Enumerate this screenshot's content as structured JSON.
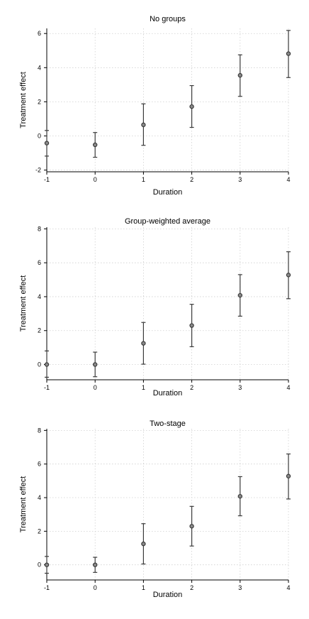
{
  "chart_data": [
    {
      "type": "scatter",
      "title": "No groups",
      "xlabel": "Duration",
      "ylabel": "Treatment effect",
      "x": [
        -1,
        0,
        1,
        2,
        3,
        4
      ],
      "xticks": [
        -1,
        0,
        1,
        2,
        3,
        4
      ],
      "yticks": [
        -2,
        0,
        2,
        4,
        6
      ],
      "xlim": [
        -1,
        4
      ],
      "ylim": [
        -2.1,
        6.3
      ],
      "grid": true,
      "series": [
        {
          "estimate": [
            -0.42,
            -0.52,
            0.65,
            1.72,
            3.55,
            4.82
          ],
          "ci_low": [
            -1.18,
            -1.25,
            -0.55,
            0.5,
            2.32,
            3.42
          ],
          "ci_high": [
            0.32,
            0.2,
            1.88,
            2.95,
            4.75,
            6.18
          ]
        }
      ]
    },
    {
      "type": "scatter",
      "title": "Group-weighted average",
      "xlabel": "Duration",
      "ylabel": "Treatment effect",
      "x": [
        -1,
        0,
        1,
        2,
        3,
        4
      ],
      "xticks": [
        -1,
        0,
        1,
        2,
        3,
        4
      ],
      "yticks": [
        0,
        2,
        4,
        6,
        8
      ],
      "xlim": [
        -1,
        4
      ],
      "ylim": [
        -0.9,
        8.1
      ],
      "grid": true,
      "series": [
        {
          "estimate": [
            0.0,
            0.0,
            1.25,
            2.3,
            4.08,
            5.28
          ],
          "ci_low": [
            -0.75,
            -0.72,
            0.02,
            1.05,
            2.85,
            3.88
          ],
          "ci_high": [
            0.8,
            0.73,
            2.48,
            3.55,
            5.3,
            6.65
          ]
        }
      ]
    },
    {
      "type": "scatter",
      "title": "Two-stage",
      "xlabel": "Duration",
      "ylabel": "Treatment effect",
      "x": [
        -1,
        0,
        1,
        2,
        3,
        4
      ],
      "xticks": [
        -1,
        0,
        1,
        2,
        3,
        4
      ],
      "yticks": [
        0,
        2,
        4,
        6,
        8
      ],
      "xlim": [
        -1,
        4
      ],
      "ylim": [
        -0.9,
        8.1
      ],
      "grid": true,
      "series": [
        {
          "estimate": [
            0.0,
            0.0,
            1.25,
            2.3,
            4.08,
            5.28
          ],
          "ci_low": [
            -0.5,
            -0.45,
            0.05,
            1.12,
            2.92,
            3.92
          ],
          "ci_high": [
            0.5,
            0.45,
            2.45,
            3.48,
            5.25,
            6.6
          ]
        }
      ]
    }
  ]
}
